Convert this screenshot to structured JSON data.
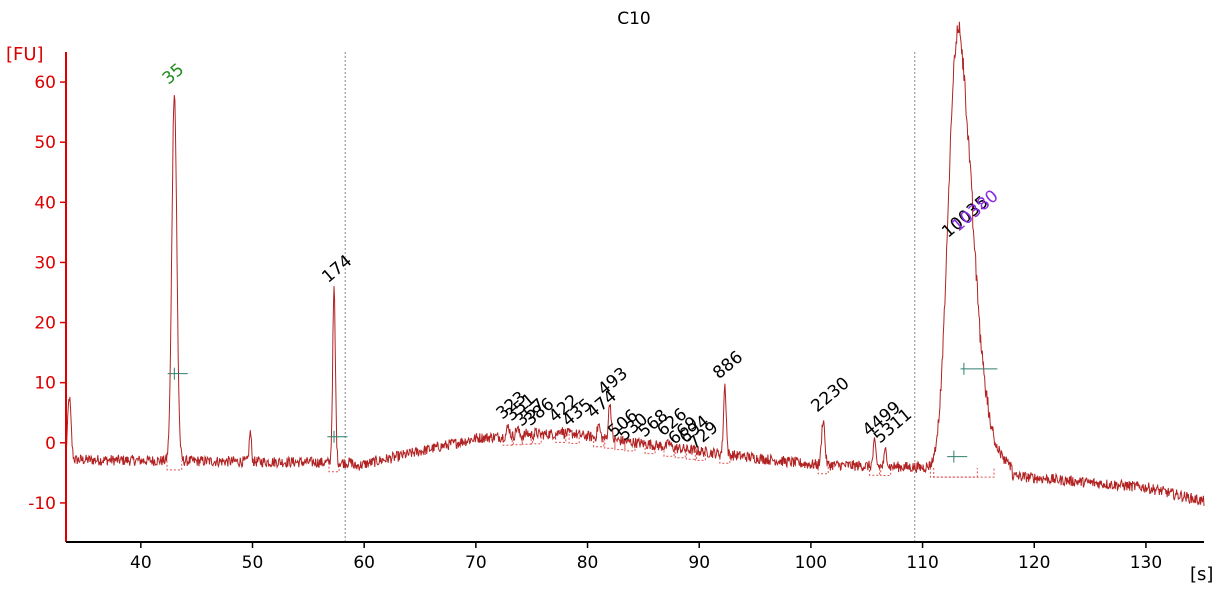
{
  "chart_data": {
    "type": "line",
    "title": "C10",
    "ylabel": "[FU]",
    "xlabel": "[s]",
    "xlim": [
      33.3,
      135.2
    ],
    "ylim": [
      -16.5,
      65
    ],
    "xticks": [
      40,
      50,
      60,
      70,
      80,
      90,
      100,
      110,
      120,
      130
    ],
    "yticks": [
      -10,
      0,
      10,
      20,
      30,
      40,
      50,
      60
    ],
    "grid": false,
    "markers": [
      58.3,
      109.3
    ],
    "colors": {
      "trace": "#b22222",
      "axis": "#dd0000",
      "lower_marker": "#228b22",
      "upper_marker": "#8a2be2",
      "peak_label": "#000000",
      "baseline": "#e05050",
      "level": "#2f7f6f"
    },
    "peaks": [
      {
        "x": 33.6,
        "y": 7.5,
        "w": 0.15
      },
      {
        "x": 43.0,
        "y": 58.5,
        "w": 0.22,
        "label": "35",
        "kind": "lower",
        "level": 11.5
      },
      {
        "x": 49.8,
        "y": 1.8,
        "w": 0.1
      },
      {
        "x": 57.3,
        "y": 25.5,
        "w": 0.12,
        "label": "174",
        "level": 1.0
      },
      {
        "x": 72.9,
        "y": 2.8,
        "w": 0.12,
        "label": "323"
      },
      {
        "x": 73.7,
        "y": 2.5,
        "w": 0.12,
        "label": "351"
      },
      {
        "x": 74.6,
        "y": 1.6,
        "w": 0.12,
        "label": "357"
      },
      {
        "x": 75.4,
        "y": 1.7,
        "w": 0.12,
        "label": "386"
      },
      {
        "x": 77.6,
        "y": 2.3,
        "w": 0.12,
        "label": "422"
      },
      {
        "x": 78.8,
        "y": 1.6,
        "w": 0.12,
        "label": "435"
      },
      {
        "x": 81.0,
        "y": 3.0,
        "w": 0.12,
        "label": "474"
      },
      {
        "x": 82.0,
        "y": 6.8,
        "w": 0.12,
        "label": "493"
      },
      {
        "x": 82.9,
        "y": -0.2,
        "w": 0.12,
        "label": "506"
      },
      {
        "x": 83.8,
        "y": -0.8,
        "w": 0.12,
        "label": "530"
      },
      {
        "x": 85.6,
        "y": -0.2,
        "w": 0.12,
        "label": "568"
      },
      {
        "x": 87.3,
        "y": 0.0,
        "w": 0.12,
        "label": "626"
      },
      {
        "x": 88.3,
        "y": -1.4,
        "w": 0.12,
        "label": "669"
      },
      {
        "x": 89.3,
        "y": -1.2,
        "w": 0.12,
        "label": "694"
      },
      {
        "x": 90.1,
        "y": -2.2,
        "w": 0.12,
        "label": "729"
      },
      {
        "x": 92.3,
        "y": 9.5,
        "w": 0.12,
        "label": "886"
      },
      {
        "x": 101.1,
        "y": 4.0,
        "w": 0.14,
        "label": "2230"
      },
      {
        "x": 105.7,
        "y": 0.0,
        "w": 0.12,
        "label": "4499"
      },
      {
        "x": 106.7,
        "y": -1.2,
        "w": 0.12,
        "label": "5311"
      },
      {
        "x": 112.8,
        "y": 33.0,
        "w": 0.7,
        "label": "10035",
        "level": -2.3
      },
      {
        "x": 113.7,
        "y": 34.0,
        "w": 0.9,
        "label": "10380",
        "kind": "upper",
        "level": 12.3
      }
    ]
  }
}
